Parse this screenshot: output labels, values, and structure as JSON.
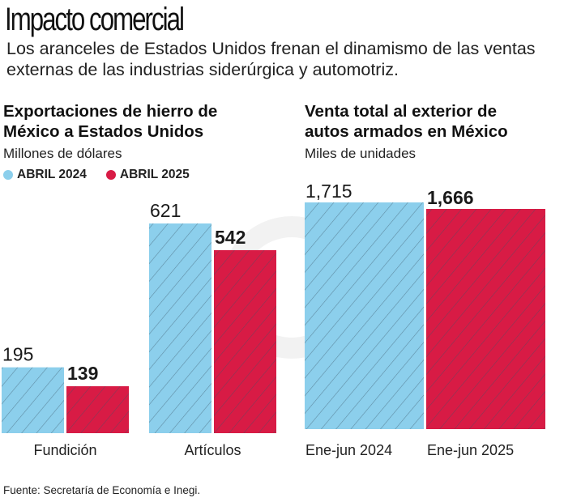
{
  "header": {
    "title": "Impacto comercial",
    "subtitle": "Los aranceles de Estados Unidos frenan el dinamismo de las ventas externas de  las industrias siderúrgica y automotriz."
  },
  "colors": {
    "series_2024": "#8ccfec",
    "series_2025": "#d81b45",
    "hatch": "#3b5566"
  },
  "footer": {
    "source": "Fuente: Secretaría de Economía e Inegi."
  },
  "chart_data": [
    {
      "type": "bar",
      "title": "Exportaciones de hierro de México a Estados Unidos",
      "title_lines": [
        "Exportaciones de hierro de",
        "México a Estados Unidos"
      ],
      "ylabel": "Millones de dólares",
      "legend": [
        "ABRIL 2024",
        "ABRIL 2025"
      ],
      "legend_position": "top-left",
      "categories": [
        "Fundición",
        "Artículos"
      ],
      "series": [
        {
          "name": "ABRIL 2024",
          "values": [
            195,
            621
          ],
          "labels": [
            "195",
            "621"
          ]
        },
        {
          "name": "ABRIL 2025",
          "values": [
            139,
            542
          ],
          "labels": [
            "139",
            "542"
          ]
        }
      ],
      "ylim": [
        0,
        650
      ],
      "grid": false
    },
    {
      "type": "bar",
      "title": "Venta total al exterior de autos armados en México",
      "title_lines": [
        "Venta total al exterior de",
        "autos armados en México"
      ],
      "ylabel": "Miles de unidades",
      "categories": [
        "Ene-jun 2024",
        "Ene-jun 2025"
      ],
      "series": [
        {
          "name": "Ene-jun 2024",
          "values": [
            1715,
            null
          ],
          "labels": [
            "1,715",
            ""
          ]
        },
        {
          "name": "Ene-jun 2025",
          "values": [
            null,
            1666
          ],
          "labels": [
            "",
            "1,666"
          ]
        }
      ],
      "values": [
        1715,
        1666
      ],
      "labels": [
        "1,715",
        "1,666"
      ],
      "ylim": [
        0,
        1800
      ],
      "grid": false
    }
  ]
}
